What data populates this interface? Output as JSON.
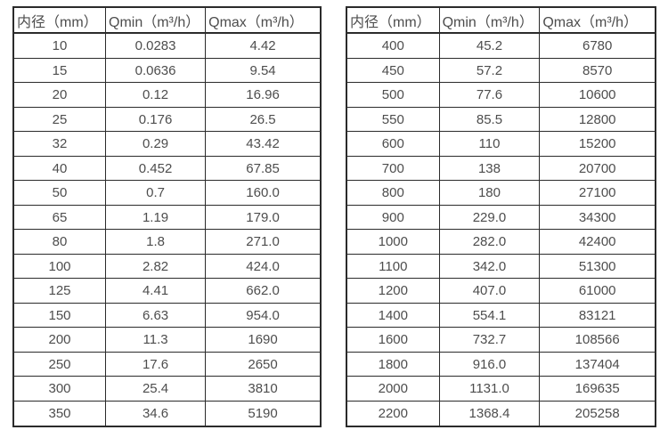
{
  "colors": {
    "background": "#ffffff",
    "border": "#2b2b2b",
    "text": "#4d4d4d"
  },
  "tables": [
    {
      "id": "small-diameter-flow-table",
      "headers": [
        "内径（mm）",
        "Qmin（m³/h）",
        "Qmax（m³/h）"
      ],
      "rows": [
        [
          "10",
          "0.0283",
          "4.42"
        ],
        [
          "15",
          "0.0636",
          "9.54"
        ],
        [
          "20",
          "0.12",
          "16.96"
        ],
        [
          "25",
          "0.176",
          "26.5"
        ],
        [
          "32",
          "0.29",
          "43.42"
        ],
        [
          "40",
          "0.452",
          "67.85"
        ],
        [
          "50",
          "0.7",
          "160.0"
        ],
        [
          "65",
          "1.19",
          "179.0"
        ],
        [
          "80",
          "1.8",
          "271.0"
        ],
        [
          "100",
          "2.82",
          "424.0"
        ],
        [
          "125",
          "4.41",
          "662.0"
        ],
        [
          "150",
          "6.63",
          "954.0"
        ],
        [
          "200",
          "11.3",
          "1690"
        ],
        [
          "250",
          "17.6",
          "2650"
        ],
        [
          "300",
          "25.4",
          "3810"
        ],
        [
          "350",
          "34.6",
          "5190"
        ]
      ]
    },
    {
      "id": "large-diameter-flow-table",
      "headers": [
        "内径（mm）",
        "Qmin（m³/h）",
        "Qmax（m³/h）"
      ],
      "rows": [
        [
          "400",
          "45.2",
          "6780"
        ],
        [
          "450",
          "57.2",
          "8570"
        ],
        [
          "500",
          "77.6",
          "10600"
        ],
        [
          "550",
          "85.5",
          "12800"
        ],
        [
          "600",
          "110",
          "15200"
        ],
        [
          "700",
          "138",
          "20700"
        ],
        [
          "800",
          "180",
          "27100"
        ],
        [
          "900",
          "229.0",
          "34300"
        ],
        [
          "1000",
          "282.0",
          "42400"
        ],
        [
          "1100",
          "342.0",
          "51300"
        ],
        [
          "1200",
          "407.0",
          "61000"
        ],
        [
          "1400",
          "554.1",
          "83121"
        ],
        [
          "1600",
          "732.7",
          "108566"
        ],
        [
          "1800",
          "916.0",
          "137404"
        ],
        [
          "2000",
          "1131.0",
          "169635"
        ],
        [
          "2200",
          "1368.4",
          "205258"
        ]
      ]
    }
  ]
}
